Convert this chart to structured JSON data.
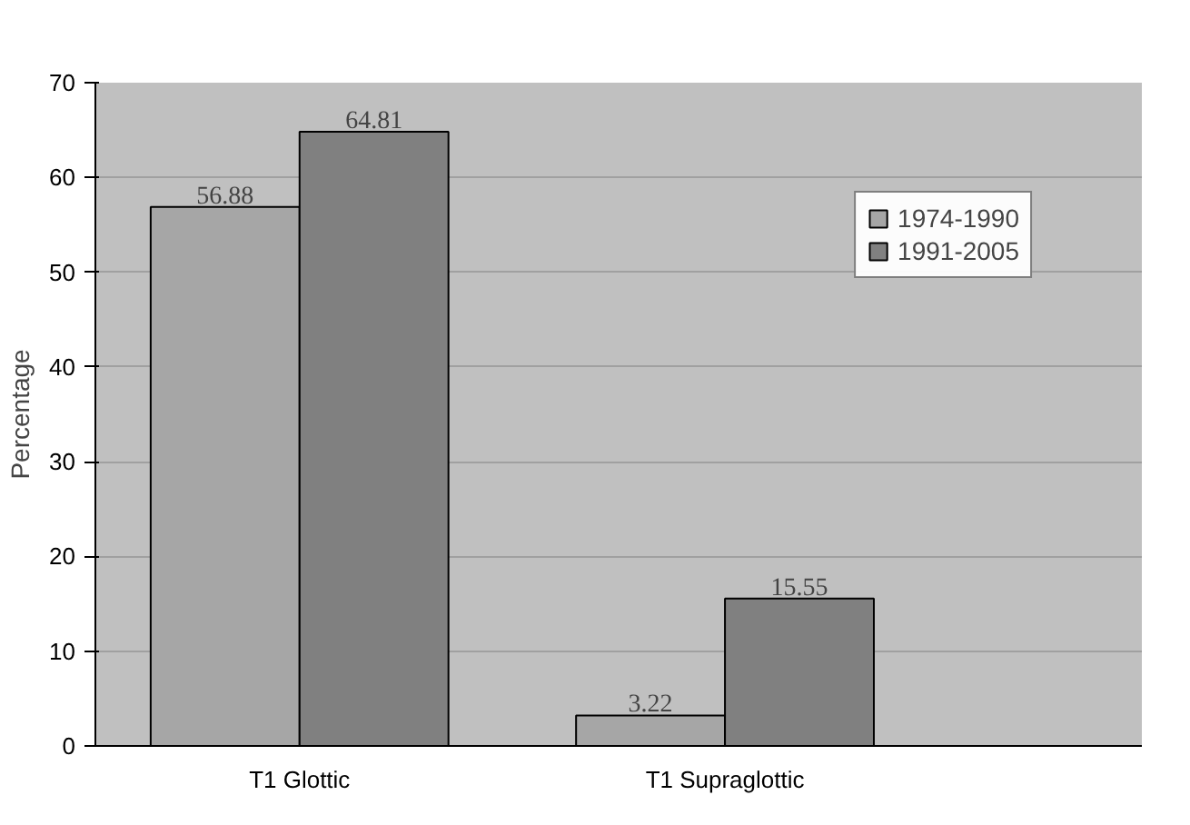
{
  "chart_data": {
    "type": "bar",
    "ylabel": "Percentage",
    "categories": [
      "T1 Glottic",
      "T1 Supraglottic"
    ],
    "series": [
      {
        "name": "1974-1990",
        "color": "#a6a6a6",
        "values": [
          56.88,
          3.22
        ]
      },
      {
        "name": "1991-2005",
        "color": "#808080",
        "values": [
          64.81,
          15.55
        ]
      }
    ],
    "ylim": [
      0,
      70
    ],
    "yticks": [
      0,
      10,
      20,
      30,
      40,
      50,
      60,
      70
    ],
    "grid": "y",
    "legend": "right",
    "data_labels": true
  }
}
